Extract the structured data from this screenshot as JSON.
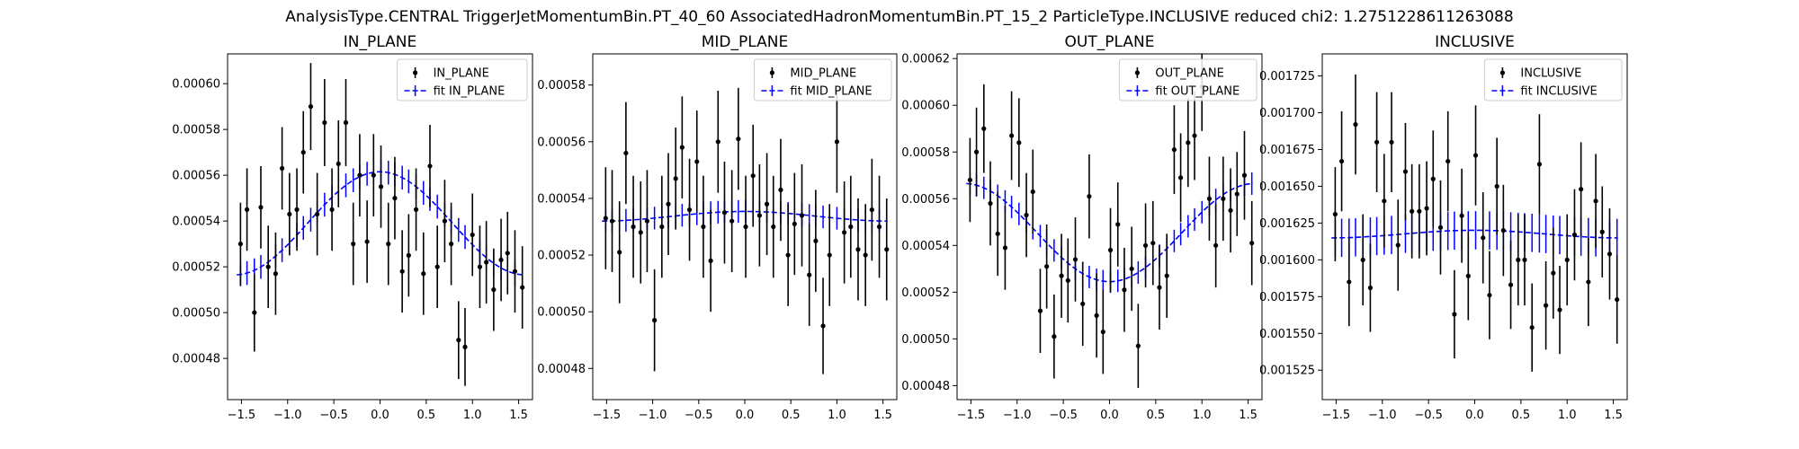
{
  "figure_title": "AnalysisType.CENTRAL TriggerJetMomentumBin.PT_40_60 AssociatedHadronMomentumBin.PT_15_2 ParticleType.INCLUSIVE reduced chi2: 1.2751228611263088",
  "colors": {
    "data": "#000000",
    "fit": "#0000ff"
  },
  "chart_data": [
    {
      "type": "scatter",
      "title": "IN_PLANE",
      "legend": [
        "IN_PLANE",
        "fit IN_PLANE"
      ],
      "legend_loc": "upper right",
      "xlim": [
        -1.65,
        1.65
      ],
      "ylim": [
        0.000462,
        0.000613
      ],
      "xticks": [
        -1.5,
        -1.0,
        -0.5,
        0.0,
        0.5,
        1.0,
        1.5
      ],
      "xtick_labels": [
        "−1.5",
        "−1.0",
        "−0.5",
        "0.0",
        "0.5",
        "1.0",
        "1.5"
      ],
      "yticks": [
        0.00048,
        0.0005,
        0.00052,
        0.00054,
        0.00056,
        0.00058,
        0.0006
      ],
      "ytick_labels": [
        "0.00048",
        "0.00050",
        "0.00052",
        "0.00054",
        "0.00056",
        "0.00058",
        "0.00060"
      ],
      "x": [
        -1.51,
        -1.44,
        -1.36,
        -1.29,
        -1.21,
        -1.13,
        -1.06,
        -0.98,
        -0.9,
        -0.83,
        -0.75,
        -0.68,
        -0.6,
        -0.52,
        -0.45,
        -0.37,
        -0.29,
        -0.22,
        -0.14,
        -0.07,
        0.01,
        0.09,
        0.16,
        0.24,
        0.31,
        0.39,
        0.47,
        0.54,
        0.62,
        0.7,
        0.77,
        0.85,
        0.92,
        1.0,
        1.08,
        1.15,
        1.23,
        1.31,
        1.38,
        1.46,
        1.54
      ],
      "y": [
        0.00053,
        0.000545,
        0.0005,
        0.000546,
        0.00052,
        0.000517,
        0.000563,
        0.000543,
        0.000545,
        0.00057,
        0.00059,
        0.000543,
        0.000583,
        0.000545,
        0.000565,
        0.000583,
        0.00053,
        0.00056,
        0.000531,
        0.00056,
        0.000555,
        0.00053,
        0.00055,
        0.000518,
        0.000525,
        0.000545,
        0.000517,
        0.000564,
        0.00052,
        0.00054,
        0.00053,
        0.000488,
        0.000485,
        0.000534,
        0.00052,
        0.000522,
        0.00051,
        0.000523,
        0.000526,
        0.000518,
        0.000511
      ],
      "yerr": [
        1.8e-05,
        1.8e-05,
        1.7e-05,
        1.8e-05,
        1.8e-05,
        1.8e-05,
        1.8e-05,
        1.8e-05,
        1.8e-05,
        1.8e-05,
        1.9e-05,
        1.8e-05,
        1.9e-05,
        1.8e-05,
        1.9e-05,
        1.9e-05,
        1.8e-05,
        1.8e-05,
        1.8e-05,
        1.8e-05,
        1.8e-05,
        1.8e-05,
        1.8e-05,
        1.8e-05,
        1.8e-05,
        1.8e-05,
        1.8e-05,
        1.8e-05,
        1.8e-05,
        1.8e-05,
        1.8e-05,
        1.7e-05,
        1.7e-05,
        1.8e-05,
        1.8e-05,
        1.8e-05,
        1.8e-05,
        1.8e-05,
        1.8e-05,
        1.8e-05,
        1.8e-05
      ],
      "fit": {
        "mean": 0.000539,
        "amplitude": 2.25e-05,
        "fit_err": 5.2e-06
      }
    },
    {
      "type": "scatter",
      "title": "MID_PLANE",
      "legend": [
        "MID_PLANE",
        "fit MID_PLANE"
      ],
      "legend_loc": "upper right",
      "xlim": [
        -1.65,
        1.65
      ],
      "ylim": [
        0.000469,
        0.000591
      ],
      "xticks": [
        -1.5,
        -1.0,
        -0.5,
        0.0,
        0.5,
        1.0,
        1.5
      ],
      "xtick_labels": [
        "−1.5",
        "−1.0",
        "−0.5",
        "0.0",
        "0.5",
        "1.0",
        "1.5"
      ],
      "yticks": [
        0.00048,
        0.0005,
        0.00052,
        0.00054,
        0.00056,
        0.00058
      ],
      "ytick_labels": [
        "0.00048",
        "0.00050",
        "0.00052",
        "0.00054",
        "0.00056",
        "0.00058"
      ],
      "x": [
        -1.51,
        -1.44,
        -1.36,
        -1.29,
        -1.21,
        -1.13,
        -1.06,
        -0.98,
        -0.9,
        -0.83,
        -0.75,
        -0.68,
        -0.6,
        -0.52,
        -0.45,
        -0.37,
        -0.29,
        -0.22,
        -0.14,
        -0.07,
        0.01,
        0.09,
        0.16,
        0.24,
        0.31,
        0.39,
        0.47,
        0.54,
        0.62,
        0.7,
        0.77,
        0.85,
        0.92,
        1.0,
        1.08,
        1.15,
        1.23,
        1.31,
        1.38,
        1.46,
        1.54
      ],
      "y": [
        0.000533,
        0.000532,
        0.000521,
        0.000556,
        0.00053,
        0.000528,
        0.000532,
        0.000497,
        0.00053,
        0.000538,
        0.000547,
        0.000558,
        0.000536,
        0.000553,
        0.00053,
        0.000518,
        0.00056,
        0.000535,
        0.000532,
        0.000561,
        0.00053,
        0.000548,
        0.000534,
        0.000538,
        0.00053,
        0.000543,
        0.00052,
        0.000531,
        0.000534,
        0.000513,
        0.000525,
        0.000495,
        0.00052,
        0.00056,
        0.000528,
        0.00053,
        0.000522,
        0.00052,
        0.000536,
        0.00053,
        0.000522
      ],
      "yerr": [
        1.8e-05,
        1.8e-05,
        1.8e-05,
        1.8e-05,
        1.8e-05,
        1.8e-05,
        1.8e-05,
        1.8e-05,
        1.8e-05,
        1.8e-05,
        1.8e-05,
        1.8e-05,
        1.8e-05,
        1.8e-05,
        1.8e-05,
        1.8e-05,
        1.8e-05,
        1.8e-05,
        1.8e-05,
        1.8e-05,
        1.8e-05,
        1.8e-05,
        1.8e-05,
        1.8e-05,
        1.8e-05,
        1.8e-05,
        1.8e-05,
        1.8e-05,
        1.8e-05,
        1.8e-05,
        1.8e-05,
        1.7e-05,
        1.8e-05,
        1.8e-05,
        1.8e-05,
        1.8e-05,
        1.8e-05,
        1.8e-05,
        1.8e-05,
        1.8e-05,
        1.8e-05
      ],
      "fit": {
        "mean": 0.0005337,
        "amplitude": 1.7e-06,
        "fit_err": 4e-06
      }
    },
    {
      "type": "scatter",
      "title": "OUT_PLANE",
      "legend": [
        "OUT_PLANE",
        "fit OUT_PLANE"
      ],
      "legend_loc": "upper right",
      "xlim": [
        -1.65,
        1.65
      ],
      "ylim": [
        0.000474,
        0.000622
      ],
      "xticks": [
        -1.5,
        -1.0,
        -0.5,
        0.0,
        0.5,
        1.0,
        1.5
      ],
      "xtick_labels": [
        "−1.5",
        "−1.0",
        "−0.5",
        "0.0",
        "0.5",
        "1.0",
        "1.5"
      ],
      "yticks": [
        0.00048,
        0.0005,
        0.00052,
        0.00054,
        0.00056,
        0.00058,
        0.0006,
        0.00062
      ],
      "ytick_labels": [
        "0.00048",
        "0.00050",
        "0.00052",
        "0.00054",
        "0.00056",
        "0.00058",
        "0.00060",
        "0.00062"
      ],
      "x": [
        -1.51,
        -1.44,
        -1.36,
        -1.29,
        -1.21,
        -1.13,
        -1.06,
        -0.98,
        -0.9,
        -0.83,
        -0.75,
        -0.68,
        -0.6,
        -0.52,
        -0.45,
        -0.37,
        -0.29,
        -0.22,
        -0.14,
        -0.07,
        0.01,
        0.09,
        0.16,
        0.24,
        0.31,
        0.39,
        0.47,
        0.54,
        0.62,
        0.7,
        0.77,
        0.85,
        0.92,
        1.0,
        1.08,
        1.15,
        1.23,
        1.31,
        1.38,
        1.46,
        1.54
      ],
      "y": [
        0.000568,
        0.00058,
        0.00059,
        0.000558,
        0.000545,
        0.000539,
        0.000587,
        0.000584,
        0.000553,
        0.000563,
        0.000512,
        0.000531,
        0.000501,
        0.000527,
        0.000525,
        0.000534,
        0.000515,
        0.000561,
        0.00051,
        0.000503,
        0.000538,
        0.000549,
        0.000521,
        0.00053,
        0.000497,
        0.00054,
        0.000541,
        0.000522,
        0.000527,
        0.000581,
        0.000569,
        0.000584,
        0.000587,
        0.000608,
        0.00056,
        0.00054,
        0.00056,
        0.000555,
        0.000562,
        0.00057,
        0.000541
      ],
      "yerr": [
        1.8e-05,
        1.9e-05,
        1.9e-05,
        1.8e-05,
        1.8e-05,
        1.8e-05,
        1.9e-05,
        1.9e-05,
        1.8e-05,
        1.8e-05,
        1.8e-05,
        1.8e-05,
        1.8e-05,
        1.8e-05,
        1.8e-05,
        1.8e-05,
        1.8e-05,
        1.8e-05,
        1.8e-05,
        1.8e-05,
        1.8e-05,
        1.8e-05,
        1.8e-05,
        1.8e-05,
        1.8e-05,
        1.8e-05,
        1.8e-05,
        1.8e-05,
        1.8e-05,
        1.9e-05,
        1.9e-05,
        1.9e-05,
        1.9e-05,
        1.9e-05,
        1.8e-05,
        1.8e-05,
        1.8e-05,
        1.8e-05,
        1.8e-05,
        1.9e-05,
        1.8e-05
      ],
      "fit": {
        "mean": 0.0005455,
        "amplitude": -2.1e-05,
        "fit_err": 4.8e-06
      }
    },
    {
      "type": "scatter",
      "title": "INCLUSIVE",
      "legend": [
        "INCLUSIVE",
        "fit INCLUSIVE"
      ],
      "legend_loc": "upper right",
      "xlim": [
        -1.65,
        1.65
      ],
      "ylim": [
        0.001505,
        0.00174
      ],
      "xticks": [
        -1.5,
        -1.0,
        -0.5,
        0.0,
        0.5,
        1.0,
        1.5
      ],
      "xtick_labels": [
        "−1.5",
        "−1.0",
        "−0.5",
        "0.0",
        "0.5",
        "1.0",
        "1.5"
      ],
      "yticks": [
        0.001525,
        0.00155,
        0.001575,
        0.0016,
        0.001625,
        0.00165,
        0.001675,
        0.0017,
        0.001725
      ],
      "ytick_labels": [
        "0.001525",
        "0.001550",
        "0.001575",
        "0.001600",
        "0.001625",
        "0.001650",
        "0.001675",
        "0.001700",
        "0.001725"
      ],
      "x": [
        -1.51,
        -1.44,
        -1.36,
        -1.29,
        -1.21,
        -1.13,
        -1.06,
        -0.98,
        -0.9,
        -0.83,
        -0.75,
        -0.68,
        -0.6,
        -0.52,
        -0.45,
        -0.37,
        -0.29,
        -0.22,
        -0.14,
        -0.07,
        0.01,
        0.09,
        0.16,
        0.24,
        0.31,
        0.39,
        0.47,
        0.54,
        0.62,
        0.7,
        0.77,
        0.85,
        0.92,
        1.0,
        1.08,
        1.15,
        1.23,
        1.31,
        1.38,
        1.46,
        1.54
      ],
      "y": [
        0.001631,
        0.001667,
        0.001585,
        0.001692,
        0.0016,
        0.001581,
        0.00168,
        0.00164,
        0.00168,
        0.00161,
        0.00166,
        0.001633,
        0.001633,
        0.001635,
        0.001655,
        0.001622,
        0.001667,
        0.001563,
        0.00163,
        0.001589,
        0.001671,
        0.001615,
        0.001576,
        0.00165,
        0.00162,
        0.001583,
        0.0016,
        0.0016,
        0.001554,
        0.001665,
        0.001569,
        0.001591,
        0.001566,
        0.0016,
        0.001617,
        0.001648,
        0.001585,
        0.00164,
        0.001619,
        0.001604,
        0.001573
      ],
      "yerr": [
        3.2e-05,
        3.4e-05,
        3e-05,
        3.4e-05,
        3.1e-05,
        3e-05,
        3.4e-05,
        3.2e-05,
        3.4e-05,
        3.1e-05,
        3.3e-05,
        3.2e-05,
        3.2e-05,
        3.2e-05,
        3.3e-05,
        3.2e-05,
        3.4e-05,
        3e-05,
        3.2e-05,
        3e-05,
        3.4e-05,
        3.1e-05,
        3e-05,
        3.3e-05,
        3.1e-05,
        3e-05,
        3.1e-05,
        3.1e-05,
        3e-05,
        3.4e-05,
        3e-05,
        3.1e-05,
        3e-05,
        3.1e-05,
        3.1e-05,
        3.2e-05,
        3e-05,
        3.2e-05,
        3.1e-05,
        3.1e-05,
        3e-05
      ],
      "fit": {
        "mean": 0.0016175,
        "amplitude": 2.6e-06,
        "fit_err": 1.3e-05
      }
    }
  ]
}
